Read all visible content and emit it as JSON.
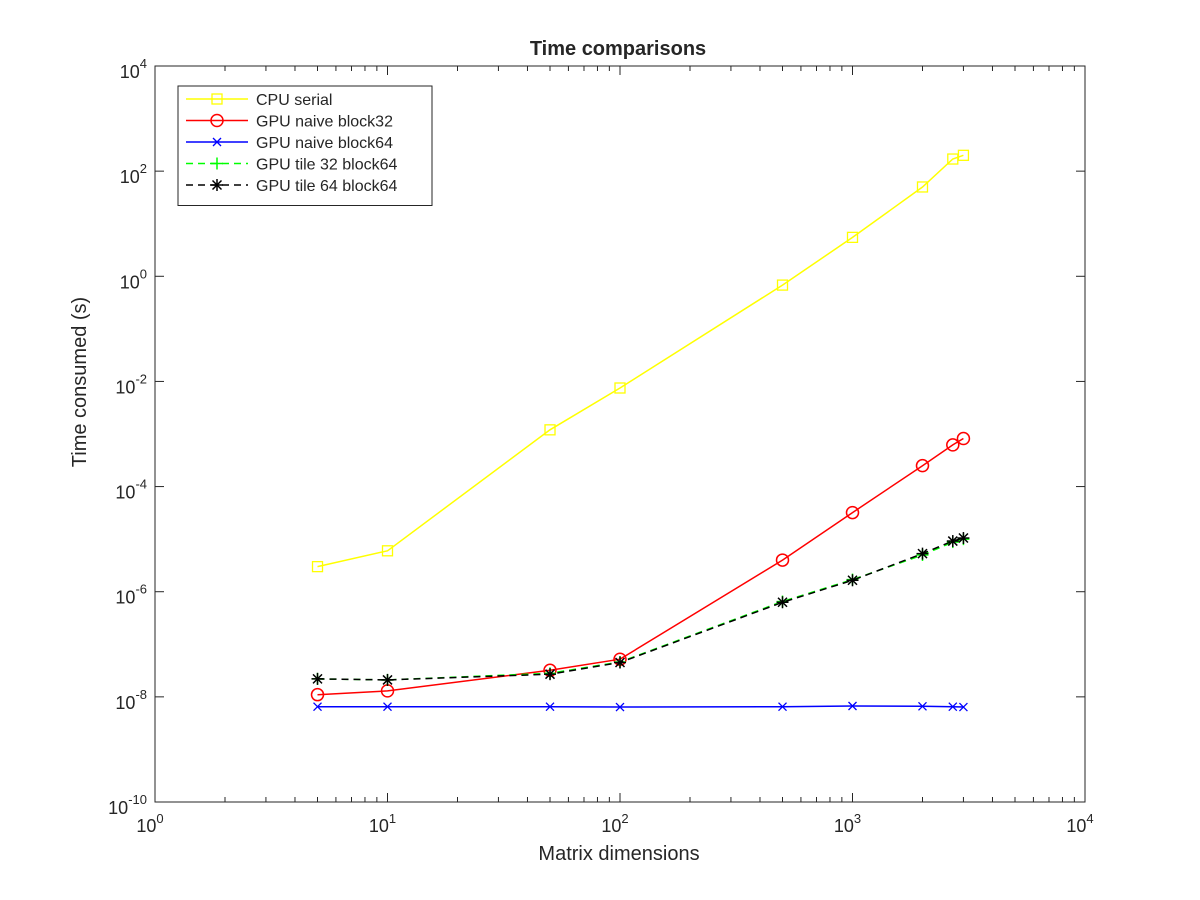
{
  "chart_data": {
    "type": "line",
    "title": "Time comparisons",
    "xlabel": "Matrix dimensions",
    "ylabel": "Time consumed (s)",
    "xscale": "log",
    "yscale": "log",
    "xlim": [
      1,
      10000
    ],
    "ylim": [
      1e-10,
      10000
    ],
    "x_ticks": [
      {
        "value": 1,
        "base": "10",
        "exp": "0"
      },
      {
        "value": 10,
        "base": "10",
        "exp": "1"
      },
      {
        "value": 100,
        "base": "10",
        "exp": "2"
      },
      {
        "value": 1000,
        "base": "10",
        "exp": "3"
      },
      {
        "value": 10000,
        "base": "10",
        "exp": "4"
      }
    ],
    "y_ticks": [
      {
        "value": 1e-10,
        "base": "10",
        "exp": "-10"
      },
      {
        "value": 1e-08,
        "base": "10",
        "exp": "-8"
      },
      {
        "value": 1e-06,
        "base": "10",
        "exp": "-6"
      },
      {
        "value": 0.0001,
        "base": "10",
        "exp": "-4"
      },
      {
        "value": 0.01,
        "base": "10",
        "exp": "-2"
      },
      {
        "value": 1,
        "base": "10",
        "exp": "0"
      },
      {
        "value": 100,
        "base": "10",
        "exp": "2"
      },
      {
        "value": 10000,
        "base": "10",
        "exp": "4"
      }
    ],
    "grid": false,
    "legend_position": "top-left",
    "x": [
      5,
      10,
      50,
      100,
      500,
      1000,
      2000,
      2700,
      3000
    ],
    "series": [
      {
        "name": "CPU serial",
        "color": "#ffff00",
        "dash": "solid",
        "marker": "square",
        "values": [
          3e-06,
          6e-06,
          0.0012,
          0.0075,
          0.68,
          5.5,
          50,
          170,
          200
        ]
      },
      {
        "name": "GPU naive block32",
        "color": "#ff0000",
        "dash": "solid",
        "marker": "circle",
        "values": [
          1.1e-08,
          1.3e-08,
          3.2e-08,
          5.2e-08,
          4e-06,
          3.2e-05,
          0.00025,
          0.00062,
          0.00082
        ]
      },
      {
        "name": "GPU naive block64",
        "color": "#0000ff",
        "dash": "solid",
        "marker": "x",
        "values": [
          6.5e-09,
          6.5e-09,
          6.5e-09,
          6.4e-09,
          6.5e-09,
          6.7e-09,
          6.6e-09,
          6.5e-09,
          6.4e-09
        ]
      },
      {
        "name": "GPU tile 32 block64",
        "color": "#00ff00",
        "dash": "dashed",
        "marker": "plus",
        "values": [
          2.2e-08,
          2.1e-08,
          2.8e-08,
          4.6e-08,
          6.5e-07,
          1.7e-06,
          5e-06,
          8.8e-06,
          1e-05
        ]
      },
      {
        "name": "GPU tile 64 block64",
        "color": "#000000",
        "dash": "dashed",
        "marker": "asterisk",
        "values": [
          2.2e-08,
          2.1e-08,
          2.7e-08,
          4.5e-08,
          6.3e-07,
          1.65e-06,
          5.3e-06,
          9.2e-06,
          1.05e-05
        ]
      }
    ]
  }
}
